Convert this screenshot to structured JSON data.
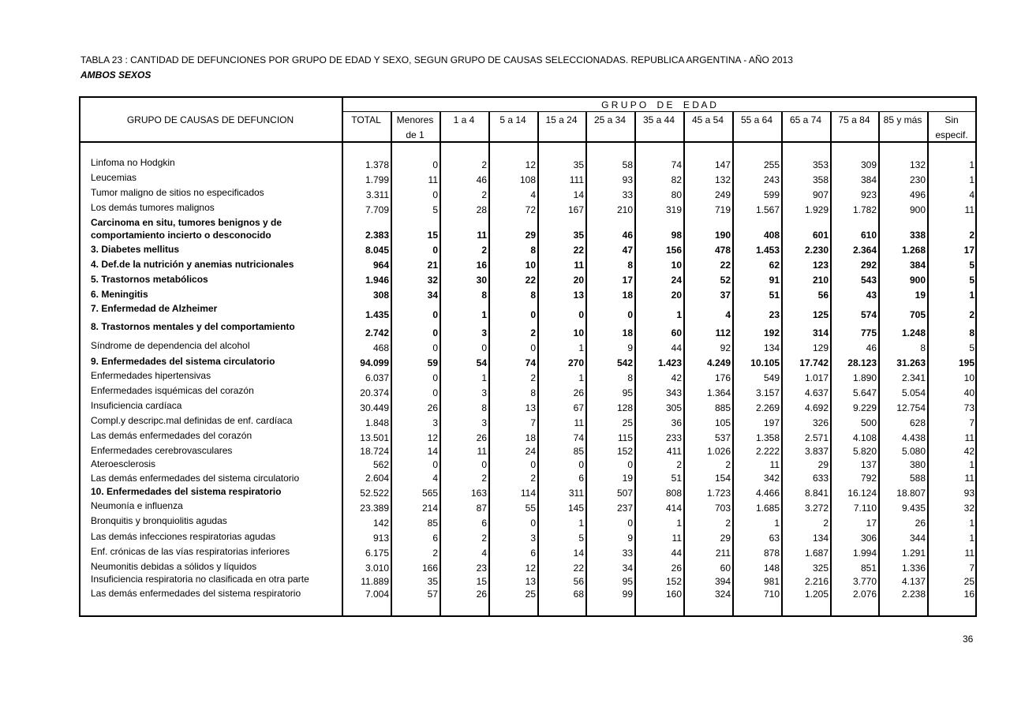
{
  "title": "TABLA 23 : CANTIDAD DE DEFUNCIONES POR GRUPO DE EDAD Y SEXO,  SEGUN GRUPO DE CAUSAS SELECCIONADAS. REPUBLICA ARGENTINA - AÑO 2013",
  "subtitle": "AMBOS SEXOS",
  "page_number": "36",
  "header": {
    "cause_col": "GRUPO DE CAUSAS DE DEFUNCION",
    "group": "G R U P O    D E    E D A D",
    "columns": [
      [
        "TOTAL",
        ""
      ],
      [
        "Menores",
        "de 1"
      ],
      [
        "1 a 4",
        ""
      ],
      [
        "5 a 14",
        ""
      ],
      [
        "15 a 24",
        ""
      ],
      [
        "25 a 34",
        ""
      ],
      [
        "35 a 44",
        ""
      ],
      [
        "45 a 54",
        ""
      ],
      [
        "55 a 64",
        ""
      ],
      [
        "65 a 74",
        ""
      ],
      [
        "75 a 84",
        ""
      ],
      [
        "85 y más",
        ""
      ],
      [
        "Sin",
        "especif."
      ]
    ]
  },
  "rows": [
    {
      "label": [
        "Linfoma no Hodgkin"
      ],
      "lb": false,
      "vb": false,
      "values": [
        "1.378",
        "0",
        "2",
        "12",
        "35",
        "58",
        "74",
        "147",
        "255",
        "353",
        "309",
        "132",
        "1"
      ]
    },
    {
      "label": [
        "Leucemias"
      ],
      "lb": false,
      "vb": false,
      "values": [
        "1.799",
        "11",
        "46",
        "108",
        "111",
        "93",
        "82",
        "132",
        "243",
        "358",
        "384",
        "230",
        "1"
      ]
    },
    {
      "label": [
        "Tumor maligno de sitios no especificados"
      ],
      "lb": false,
      "vb": false,
      "values": [
        "3.311",
        "0",
        "2",
        "4",
        "14",
        "33",
        "80",
        "249",
        "599",
        "907",
        "923",
        "496",
        "4"
      ]
    },
    {
      "label": [
        "Los demás tumores malignos"
      ],
      "lb": false,
      "vb": false,
      "values": [
        "7.709",
        "5",
        "28",
        "72",
        "167",
        "210",
        "319",
        "719",
        "1.567",
        "1.929",
        "1.782",
        "900",
        "11"
      ]
    },
    {
      "label": [
        "Carcinoma en situ, tumores benignos y de",
        "comportamiento incierto o desconocido"
      ],
      "lb": true,
      "vb": true,
      "values": [
        "2.383",
        "15",
        "11",
        "29",
        "35",
        "46",
        "98",
        "190",
        "408",
        "601",
        "610",
        "338",
        "2"
      ]
    },
    {
      "label": [
        "3. Diabetes mellitus"
      ],
      "lb": true,
      "vb": true,
      "values": [
        "8.045",
        "0",
        "2",
        "8",
        "22",
        "47",
        "156",
        "478",
        "1.453",
        "2.230",
        "2.364",
        "1.268",
        "17"
      ]
    },
    {
      "label": [
        "4. Def.de la nutrición y anemias nutricionales"
      ],
      "lb": true,
      "vb": true,
      "values": [
        "964",
        "21",
        "16",
        "10",
        "11",
        "8",
        "10",
        "22",
        "62",
        "123",
        "292",
        "384",
        "5"
      ]
    },
    {
      "label": [
        "5. Trastornos metabólicos"
      ],
      "lb": true,
      "vb": true,
      "values": [
        "1.946",
        "32",
        "30",
        "22",
        "20",
        "17",
        "24",
        "52",
        "91",
        "210",
        "543",
        "900",
        "5"
      ]
    },
    {
      "label": [
        "6. Meningitis"
      ],
      "lb": true,
      "vb": true,
      "values": [
        "308",
        "34",
        "8",
        "8",
        "13",
        "18",
        "20",
        "37",
        "51",
        "56",
        "43",
        "19",
        "1"
      ]
    },
    {
      "label": [
        "7. Enfermedad de Alzheimer"
      ],
      "lb": true,
      "vb": true,
      "values": [
        "1.435",
        "0",
        "1",
        "0",
        "0",
        "0",
        "1",
        "4",
        "23",
        "125",
        "574",
        "705",
        "2"
      ]
    },
    {
      "label": [
        "8. Trastornos mentales y del comportamiento"
      ],
      "lb": true,
      "vb": true,
      "values": [
        "2.742",
        "0",
        "3",
        "2",
        "10",
        "18",
        "60",
        "112",
        "192",
        "314",
        "775",
        "1.248",
        "8"
      ]
    },
    {
      "label": [
        "Síndrome de dependencia del alcohol"
      ],
      "lb": false,
      "vb": false,
      "values": [
        "468",
        "0",
        "0",
        "0",
        "1",
        "9",
        "44",
        "92",
        "134",
        "129",
        "46",
        "8",
        "5"
      ]
    },
    {
      "label": [
        "9. Enfermedades del sistema circulatorio"
      ],
      "lb": true,
      "vb": true,
      "values": [
        "94.099",
        "59",
        "54",
        "74",
        "270",
        "542",
        "1.423",
        "4.249",
        "10.105",
        "17.742",
        "28.123",
        "31.263",
        "195"
      ]
    },
    {
      "label": [
        "Enfermedades hipertensivas"
      ],
      "lb": false,
      "vb": false,
      "values": [
        "6.037",
        "0",
        "1",
        "2",
        "1",
        "8",
        "42",
        "176",
        "549",
        "1.017",
        "1.890",
        "2.341",
        "10"
      ]
    },
    {
      "label": [
        "Enfermedades isquémicas del corazón"
      ],
      "lb": false,
      "vb": false,
      "values": [
        "20.374",
        "0",
        "3",
        "8",
        "26",
        "95",
        "343",
        "1.364",
        "3.157",
        "4.637",
        "5.647",
        "5.054",
        "40"
      ]
    },
    {
      "label": [
        "Insuficiencia cardíaca"
      ],
      "lb": false,
      "vb": false,
      "values": [
        "30.449",
        "26",
        "8",
        "13",
        "67",
        "128",
        "305",
        "885",
        "2.269",
        "4.692",
        "9.229",
        "12.754",
        "73"
      ]
    },
    {
      "label": [
        "Compl.y descripc.mal definidas de enf. cardíaca"
      ],
      "lb": false,
      "vb": false,
      "values": [
        "1.848",
        "3",
        "3",
        "7",
        "11",
        "25",
        "36",
        "105",
        "197",
        "326",
        "500",
        "628",
        "7"
      ]
    },
    {
      "label": [
        "Las demás enfermedades del corazón"
      ],
      "lb": false,
      "vb": false,
      "values": [
        "13.501",
        "12",
        "26",
        "18",
        "74",
        "115",
        "233",
        "537",
        "1.358",
        "2.571",
        "4.108",
        "4.438",
        "11"
      ]
    },
    {
      "label": [
        "Enfermedades cerebrovasculares"
      ],
      "lb": false,
      "vb": false,
      "values": [
        "18.724",
        "14",
        "11",
        "24",
        "85",
        "152",
        "411",
        "1.026",
        "2.222",
        "3.837",
        "5.820",
        "5.080",
        "42"
      ]
    },
    {
      "label": [
        "Ateroesclerosis"
      ],
      "lb": false,
      "vb": false,
      "values": [
        "562",
        "0",
        "0",
        "0",
        "0",
        "0",
        "2",
        "2",
        "11",
        "29",
        "137",
        "380",
        "1"
      ]
    },
    {
      "label": [
        "Las demás enfermedades del sistema circulatorio"
      ],
      "lb": false,
      "vb": false,
      "values": [
        "2.604",
        "4",
        "2",
        "2",
        "6",
        "19",
        "51",
        "154",
        "342",
        "633",
        "792",
        "588",
        "11"
      ]
    },
    {
      "label": [
        "10. Enfermedades del sistema respiratorio"
      ],
      "lb": true,
      "vb": false,
      "values": [
        "52.522",
        "565",
        "163",
        "114",
        "311",
        "507",
        "808",
        "1.723",
        "4.466",
        "8.841",
        "16.124",
        "18.807",
        "93"
      ]
    },
    {
      "label": [
        "Neumonía e influenza"
      ],
      "lb": false,
      "vb": false,
      "values": [
        "23.389",
        "214",
        "87",
        "55",
        "145",
        "237",
        "414",
        "703",
        "1.685",
        "3.272",
        "7.110",
        "9.435",
        "32"
      ]
    },
    {
      "label": [
        "Bronquitis y bronquiolitis agudas"
      ],
      "lb": false,
      "vb": false,
      "values": [
        "142",
        "85",
        "6",
        "0",
        "1",
        "0",
        "1",
        "2",
        "1",
        "2",
        "17",
        "26",
        "1"
      ]
    },
    {
      "label": [
        "Las demás infecciones respiratorias agudas"
      ],
      "lb": false,
      "vb": false,
      "values": [
        "913",
        "6",
        "2",
        "3",
        "5",
        "9",
        "11",
        "29",
        "63",
        "134",
        "306",
        "344",
        "1"
      ]
    },
    {
      "label": [
        "Enf. crónicas de las vías respiratorias inferiores"
      ],
      "lb": false,
      "vb": false,
      "values": [
        "6.175",
        "2",
        "4",
        "6",
        "14",
        "33",
        "44",
        "211",
        "878",
        "1.687",
        "1.994",
        "1.291",
        "11"
      ]
    },
    {
      "label": [
        "Neumonitis debidas a sólidos y líquidos"
      ],
      "lb": false,
      "vb": false,
      "values": [
        "3.010",
        "166",
        "23",
        "12",
        "22",
        "34",
        "26",
        "60",
        "148",
        "325",
        "851",
        "1.336",
        "7"
      ]
    },
    {
      "label": [
        "Insuficiencia respiratoria no clasificada en otra parte"
      ],
      "lb": false,
      "vb": false,
      "values": [
        "11.889",
        "35",
        "15",
        "13",
        "56",
        "95",
        "152",
        "394",
        "981",
        "2.216",
        "3.770",
        "4.137",
        "25"
      ]
    },
    {
      "label": [
        "Las demás enfermedades del sistema respiratorio"
      ],
      "lb": false,
      "vb": false,
      "values": [
        "7.004",
        "57",
        "26",
        "25",
        "68",
        "99",
        "160",
        "324",
        "710",
        "1.205",
        "2.076",
        "2.238",
        "16"
      ]
    }
  ]
}
